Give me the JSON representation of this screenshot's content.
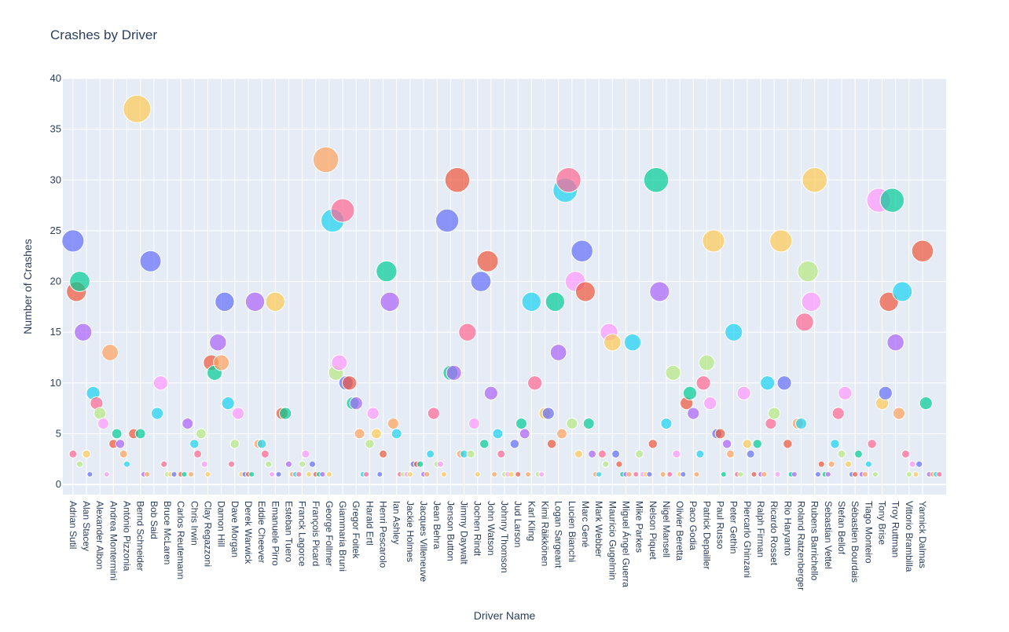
{
  "chart_data": {
    "type": "scatter",
    "variant": "bubble",
    "title": "Crashes by Driver",
    "xlabel": "Driver Name",
    "ylabel": "Number of Crashes",
    "ylim": [
      -1,
      40
    ],
    "yticks": [
      0,
      5,
      10,
      15,
      20,
      25,
      30,
      35,
      40
    ],
    "grid": true,
    "legend": "none",
    "x_tick_labels": [
      "Adrian Sutil",
      "Alan Stacey",
      "Alexander Albon",
      "Andrea Montermini",
      "António Pizzonia",
      "Bernd Schneider",
      "Bob Said",
      "Bruce McLaren",
      "Carlos Reutemann",
      "Chris Irwin",
      "Clay Regazzoni",
      "Damon Hill",
      "Dave Morgan",
      "Derek Warwick",
      "Eddie Cheever",
      "Emanuele Pirro",
      "Esteban Tuero",
      "Franck Lagorce",
      "François Picard",
      "George Follmer",
      "Giammaria Bruni",
      "Gregor Foitek",
      "Harald Ertl",
      "Henri Pescarolo",
      "Ian Ashley",
      "Jackie Holmes",
      "Jacques Villeneuve",
      "Jean Behra",
      "Jenson Button",
      "Jimmy Daywalt",
      "Jochen Rindt",
      "John Watson",
      "Johnny Thomson",
      "Jud Larson",
      "Karl Kling",
      "Kimi Räikkönen",
      "Logan Sargeant",
      "Lucien Bianchi",
      "Marc Gené",
      "Mark Webber",
      "Maurício Gugelmin",
      "Miguel Ángel Guerra",
      "Mike Parkes",
      "Nelson Piquet",
      "Nigel Mansell",
      "Olivier Beretta",
      "Paco Godia",
      "Patrick Depailler",
      "Paul Russo",
      "Peter Gethin",
      "Piercarlo Ghinzani",
      "Ralph Firman",
      "Ricardo Rosset",
      "Rio Haryanto",
      "Roland Ratzenberger",
      "Rubens Barrichello",
      "Sebastian Vettel",
      "Stefan Bellof",
      "Sébastien Bourdais",
      "Tiago Monteiro",
      "Tony Brise",
      "Troy Ruttman",
      "Vittorio Brambilla",
      "Yannick Dalmas"
    ],
    "x_range": [
      -3,
      259
    ],
    "points_xy": [
      [
        0,
        24
      ],
      [
        1,
        19
      ],
      [
        2,
        20
      ],
      [
        3,
        15
      ],
      [
        11,
        13
      ],
      [
        6,
        9
      ],
      [
        7,
        8
      ],
      [
        8,
        7
      ],
      [
        9,
        6
      ],
      [
        4,
        3
      ],
      [
        5,
        1
      ],
      [
        12,
        4
      ],
      [
        13,
        5
      ],
      [
        14,
        4
      ],
      [
        15,
        3
      ],
      [
        16,
        2
      ],
      [
        0,
        3
      ],
      [
        2,
        2
      ],
      [
        10,
        1
      ],
      [
        19,
        37
      ],
      [
        23,
        22
      ],
      [
        18,
        5
      ],
      [
        20,
        5
      ],
      [
        21,
        1
      ],
      [
        22,
        1
      ],
      [
        25,
        7
      ],
      [
        27,
        2
      ],
      [
        28,
        1
      ],
      [
        26,
        10
      ],
      [
        29,
        1
      ],
      [
        30,
        1
      ],
      [
        32,
        1
      ],
      [
        33,
        1
      ],
      [
        34,
        6
      ],
      [
        35,
        1
      ],
      [
        36,
        4
      ],
      [
        37,
        3
      ],
      [
        38,
        5
      ],
      [
        39,
        2
      ],
      [
        40,
        1
      ],
      [
        45,
        18
      ],
      [
        41,
        12
      ],
      [
        42,
        11
      ],
      [
        43,
        14
      ],
      [
        44,
        12
      ],
      [
        46,
        8
      ],
      [
        47,
        2
      ],
      [
        48,
        4
      ],
      [
        49,
        7
      ],
      [
        50,
        1
      ],
      [
        51,
        1
      ],
      [
        52,
        1
      ],
      [
        53,
        1
      ],
      [
        54,
        18
      ],
      [
        55,
        4
      ],
      [
        56,
        4
      ],
      [
        57,
        3
      ],
      [
        58,
        2
      ],
      [
        59,
        1
      ],
      [
        60,
        18
      ],
      [
        61,
        1
      ],
      [
        62,
        7
      ],
      [
        63,
        7
      ],
      [
        64,
        2
      ],
      [
        65,
        1
      ],
      [
        66,
        1
      ],
      [
        67,
        1
      ],
      [
        68,
        2
      ],
      [
        69,
        3
      ],
      [
        70,
        1
      ],
      [
        71,
        2
      ],
      [
        72,
        1
      ],
      [
        73,
        1
      ],
      [
        74,
        1
      ],
      [
        75,
        32
      ],
      [
        77,
        26
      ],
      [
        80,
        27
      ],
      [
        78,
        11
      ],
      [
        79,
        12
      ],
      [
        76,
        1
      ],
      [
        81,
        10
      ],
      [
        82,
        10
      ],
      [
        83,
        8
      ],
      [
        84,
        8
      ],
      [
        85,
        5
      ],
      [
        86,
        1
      ],
      [
        87,
        1
      ],
      [
        88,
        4
      ],
      [
        89,
        7
      ],
      [
        90,
        5
      ],
      [
        91,
        1
      ],
      [
        92,
        3
      ],
      [
        93,
        21
      ],
      [
        94,
        18
      ],
      [
        95,
        6
      ],
      [
        96,
        5
      ],
      [
        97,
        1
      ],
      [
        98,
        1
      ],
      [
        99,
        1
      ],
      [
        100,
        1
      ],
      [
        101,
        2
      ],
      [
        102,
        2
      ],
      [
        103,
        2
      ],
      [
        104,
        1
      ],
      [
        105,
        1
      ],
      [
        106,
        3
      ],
      [
        107,
        7
      ],
      [
        108,
        2
      ],
      [
        109,
        2
      ],
      [
        110,
        1
      ],
      [
        111,
        26
      ],
      [
        114,
        30
      ],
      [
        112,
        11
      ],
      [
        113,
        11
      ],
      [
        115,
        3
      ],
      [
        116,
        3
      ],
      [
        117,
        15
      ],
      [
        118,
        3
      ],
      [
        119,
        6
      ],
      [
        120,
        1
      ],
      [
        121,
        20
      ],
      [
        123,
        22
      ],
      [
        122,
        4
      ],
      [
        124,
        9
      ],
      [
        125,
        1
      ],
      [
        126,
        5
      ],
      [
        127,
        3
      ],
      [
        128,
        1
      ],
      [
        129,
        1
      ],
      [
        130,
        1
      ],
      [
        131,
        4
      ],
      [
        132,
        1
      ],
      [
        133,
        6
      ],
      [
        134,
        5
      ],
      [
        135,
        1
      ],
      [
        136,
        18
      ],
      [
        137,
        10
      ],
      [
        138,
        1
      ],
      [
        139,
        1
      ],
      [
        140,
        7
      ],
      [
        141,
        7
      ],
      [
        142,
        4
      ],
      [
        143,
        18
      ],
      [
        144,
        13
      ],
      [
        145,
        5
      ],
      [
        146,
        29
      ],
      [
        147,
        30
      ],
      [
        148,
        6
      ],
      [
        149,
        20
      ],
      [
        150,
        3
      ],
      [
        151,
        23
      ],
      [
        152,
        19
      ],
      [
        153,
        6
      ],
      [
        154,
        3
      ],
      [
        155,
        1
      ],
      [
        156,
        1
      ],
      [
        157,
        3
      ],
      [
        158,
        2
      ],
      [
        159,
        15
      ],
      [
        160,
        14
      ],
      [
        161,
        3
      ],
      [
        162,
        2
      ],
      [
        163,
        1
      ],
      [
        164,
        1
      ],
      [
        165,
        1
      ],
      [
        166,
        14
      ],
      [
        167,
        1
      ],
      [
        168,
        3
      ],
      [
        169,
        1
      ],
      [
        170,
        1
      ],
      [
        171,
        1
      ],
      [
        172,
        4
      ],
      [
        173,
        30
      ],
      [
        174,
        19
      ],
      [
        175,
        1
      ],
      [
        176,
        6
      ],
      [
        177,
        1
      ],
      [
        178,
        11
      ],
      [
        179,
        3
      ],
      [
        180,
        1
      ],
      [
        181,
        1
      ],
      [
        182,
        8
      ],
      [
        183,
        9
      ],
      [
        184,
        7
      ],
      [
        185,
        1
      ],
      [
        186,
        3
      ],
      [
        187,
        10
      ],
      [
        188,
        12
      ],
      [
        189,
        8
      ],
      [
        190,
        24
      ],
      [
        191,
        5
      ],
      [
        192,
        5
      ],
      [
        193,
        1
      ],
      [
        194,
        4
      ],
      [
        195,
        3
      ],
      [
        196,
        15
      ],
      [
        197,
        1
      ],
      [
        198,
        1
      ],
      [
        199,
        9
      ],
      [
        200,
        4
      ],
      [
        201,
        3
      ],
      [
        202,
        1
      ],
      [
        203,
        4
      ],
      [
        204,
        1
      ],
      [
        205,
        1
      ],
      [
        206,
        10
      ],
      [
        207,
        6
      ],
      [
        208,
        7
      ],
      [
        209,
        1
      ],
      [
        210,
        24
      ],
      [
        211,
        10
      ],
      [
        212,
        4
      ],
      [
        213,
        1
      ],
      [
        214,
        1
      ],
      [
        215,
        6
      ],
      [
        216,
        6
      ],
      [
        217,
        16
      ],
      [
        218,
        21
      ],
      [
        219,
        18
      ],
      [
        220,
        30
      ],
      [
        221,
        1
      ],
      [
        222,
        2
      ],
      [
        223,
        1
      ],
      [
        224,
        1
      ],
      [
        225,
        2
      ],
      [
        226,
        4
      ],
      [
        227,
        7
      ],
      [
        228,
        3
      ],
      [
        229,
        9
      ],
      [
        230,
        2
      ],
      [
        231,
        1
      ],
      [
        232,
        1
      ],
      [
        233,
        3
      ],
      [
        234,
        1
      ],
      [
        235,
        1
      ],
      [
        236,
        2
      ],
      [
        237,
        4
      ],
      [
        238,
        1
      ],
      [
        239,
        28
      ],
      [
        240,
        8
      ],
      [
        241,
        9
      ],
      [
        242,
        18
      ],
      [
        243,
        28
      ],
      [
        244,
        14
      ],
      [
        245,
        7
      ],
      [
        246,
        19
      ],
      [
        247,
        3
      ],
      [
        248,
        1
      ],
      [
        249,
        2
      ],
      [
        250,
        1
      ],
      [
        251,
        2
      ],
      [
        252,
        23
      ],
      [
        253,
        8
      ],
      [
        254,
        1
      ],
      [
        255,
        1
      ],
      [
        256,
        1
      ],
      [
        257,
        1
      ]
    ],
    "points_note": "subset of bubbles; size proportional to value",
    "bubble_size_encodes": "Number of Crashes",
    "colors": [
      "#636efa",
      "#ef553b",
      "#00cc96",
      "#ab63fa",
      "#ffa15a",
      "#19d3f3",
      "#ff6692",
      "#b6e880",
      "#ff97ff",
      "#fecb52"
    ]
  }
}
